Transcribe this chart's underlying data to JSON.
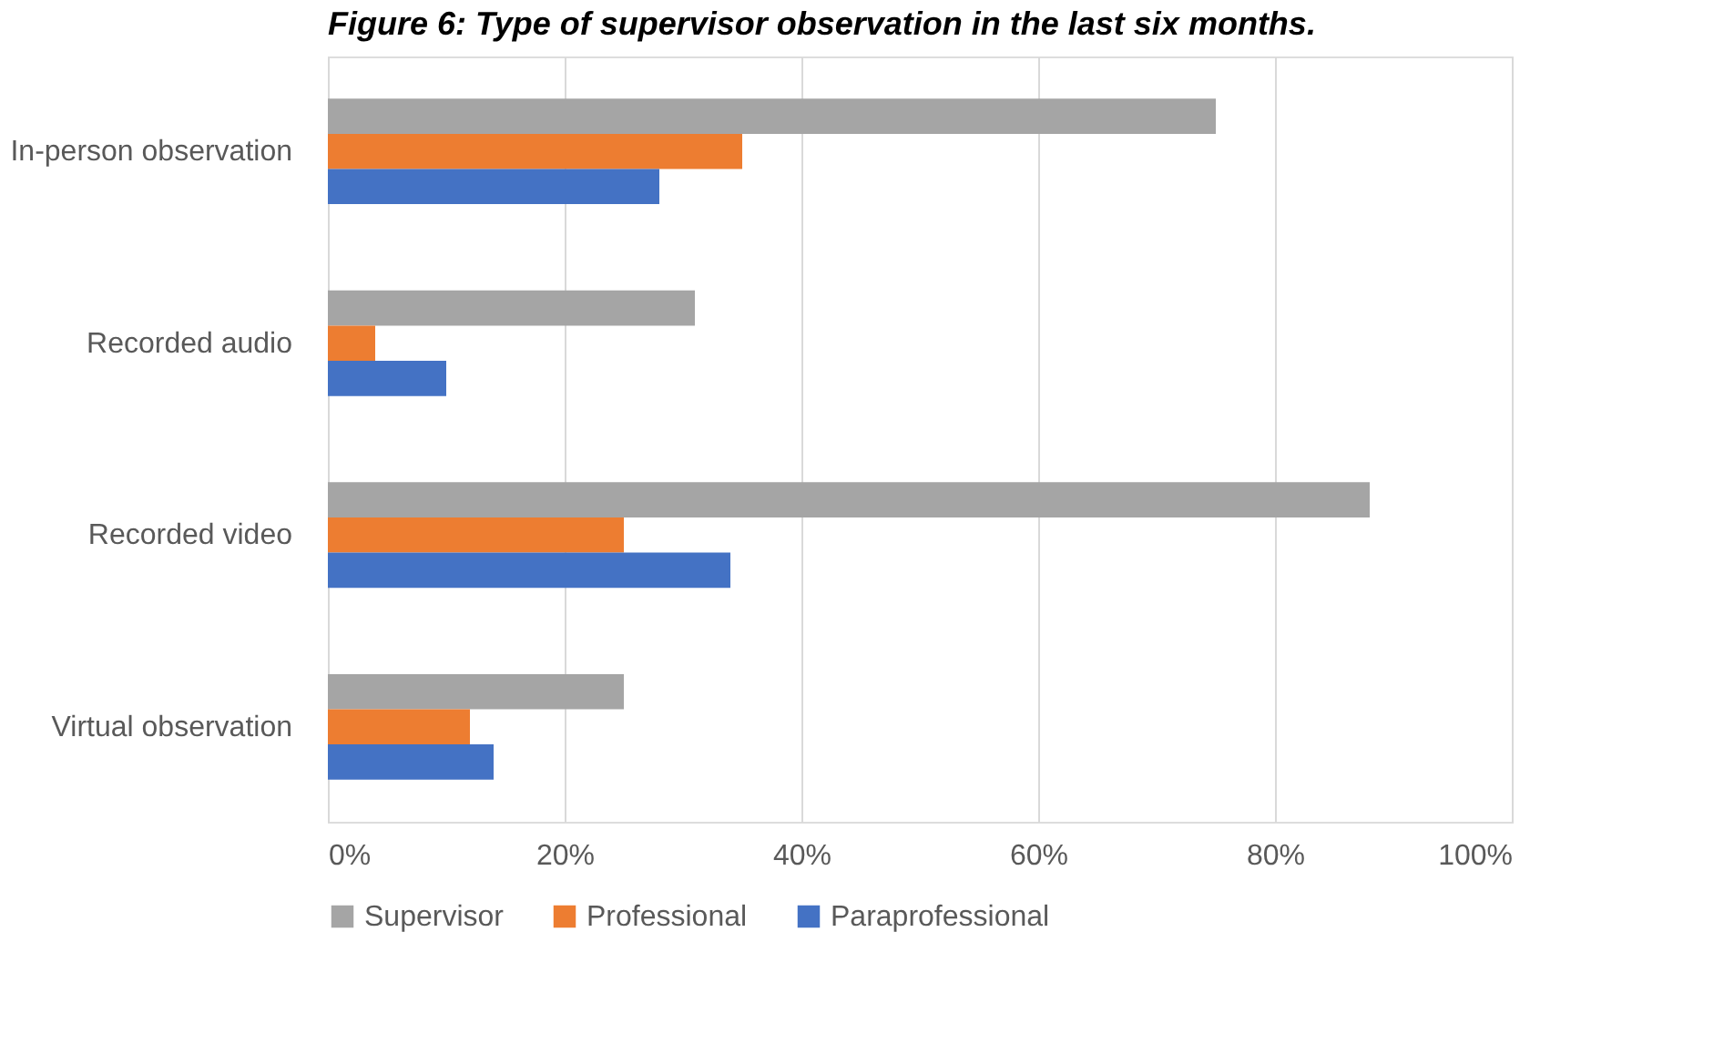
{
  "chart_data": {
    "type": "bar",
    "orientation": "horizontal",
    "title": "Figure 6: Type of supervisor observation in the last six months.",
    "categories": [
      "In-person observation",
      "Recorded audio",
      "Recorded video",
      "Virtual observation"
    ],
    "series": [
      {
        "name": "Supervisor",
        "color": "#a5a5a5",
        "values": [
          75,
          31,
          88,
          25
        ]
      },
      {
        "name": "Professional",
        "color": "#ed7d31",
        "values": [
          35,
          4,
          25,
          12
        ]
      },
      {
        "name": "Paraprofessional",
        "color": "#4472c4",
        "values": [
          28,
          10,
          34,
          14
        ]
      }
    ],
    "xlim": [
      0,
      100
    ],
    "xticks": [
      {
        "value": 0,
        "label": "0%"
      },
      {
        "value": 20,
        "label": "20%"
      },
      {
        "value": 40,
        "label": "40%"
      },
      {
        "value": 60,
        "label": "60%"
      },
      {
        "value": 80,
        "label": "80%"
      },
      {
        "value": 100,
        "label": "100%"
      }
    ],
    "grid": "x",
    "legend": "bottom"
  }
}
